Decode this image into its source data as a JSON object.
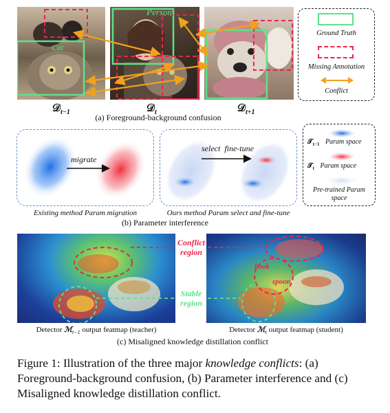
{
  "panel_a": {
    "frames": [
      {
        "label_main": "𝒟",
        "label_sub": "t−1"
      },
      {
        "label_main": "𝒟",
        "label_sub": "t"
      },
      {
        "label_main": "𝒟",
        "label_sub": "t+1"
      }
    ],
    "box_labels": {
      "cat": "Cat",
      "person": "Person"
    },
    "legend": {
      "ground_truth": "Ground Truth",
      "missing": "Missing Annotation",
      "conflict": "Conflict"
    },
    "caption": "(a) Foreground-background confusion",
    "colors": {
      "ground_truth": "#5fe08a",
      "missing": "#e8264f",
      "conflict": "#f2a11e"
    }
  },
  "panel_b": {
    "left_arrow_label": "migrate",
    "right_arrow_label": "select  fine-tune",
    "left_caption": "Existing method Param migration",
    "right_caption": "Ours method Param select and fine-tune",
    "legend": {
      "prev_sym": "𝒯",
      "prev_sub": "t−1",
      "prev_txt": "Param space",
      "cur_sym": "𝒯",
      "cur_sub": "t",
      "cur_txt": "Param space",
      "pretrained": "Pre-trained Param space"
    },
    "caption": "(b) Parameter interference"
  },
  "panel_c": {
    "conflict_label": "Conflict region",
    "stable_label": "Stable region",
    "student_tags": [
      "book",
      "spoon"
    ],
    "left_caption_prefix": "Detector ",
    "left_caption_sym": "ℳ",
    "left_caption_sub": "t−1",
    "left_caption_suffix": " output featmap (teacher)",
    "right_caption_prefix": "Detector ",
    "right_caption_sym": "ℳ",
    "right_caption_sub": "t",
    "right_caption_suffix": " output featmap  (student)",
    "caption": "(c) Misaligned knowledge distillation conflict"
  },
  "figure_caption": {
    "prefix": "Figure 1: Illustration of the three major ",
    "emphasis": "knowledge conflicts",
    "suffix": ": (a) Foreground-background confusion, (b) Parameter interference and (c) Misaligned knowledge distillation conflict."
  }
}
